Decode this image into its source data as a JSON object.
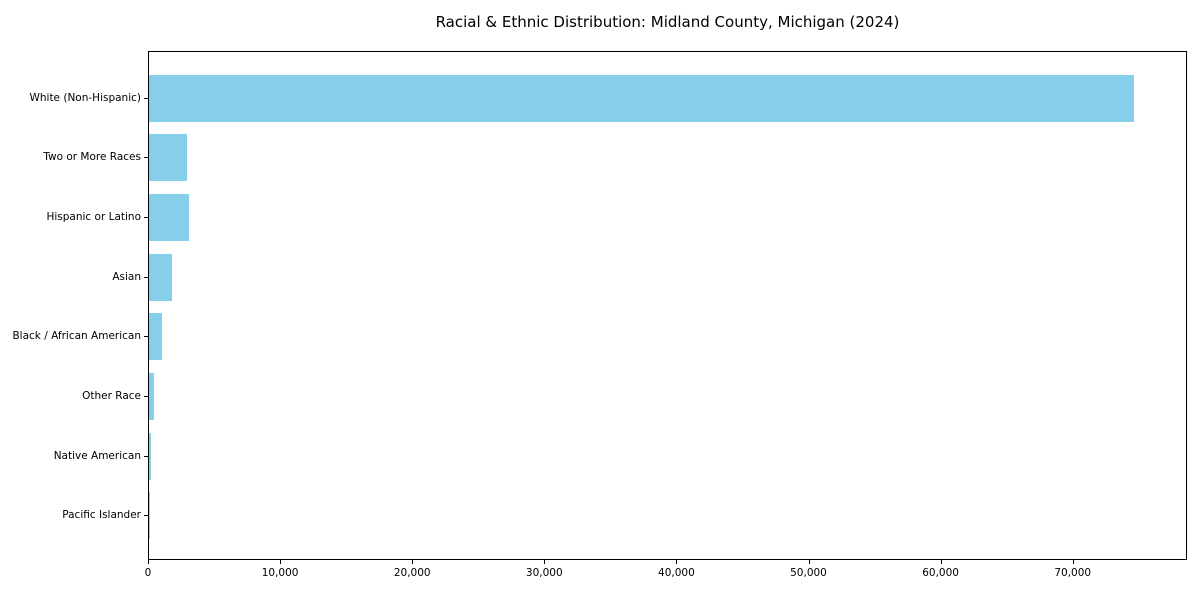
{
  "title": "Racial & Ethnic Distribution: Midland County, Michigan (2024)",
  "chart_data": {
    "type": "bar",
    "orientation": "horizontal",
    "title": "Racial & Ethnic Distribution: Midland County, Michigan (2024)",
    "xlabel": "",
    "ylabel": "",
    "categories": [
      "White (Non-Hispanic)",
      "Two or More Races",
      "Hispanic or Latino",
      "Asian",
      "Black / African American",
      "Other Race",
      "Native American",
      "Pacific Islander"
    ],
    "values": [
      74600,
      2900,
      3000,
      1750,
      1000,
      350,
      150,
      30
    ],
    "xlim": [
      0,
      78500
    ],
    "x_ticks": [
      0,
      10000,
      20000,
      30000,
      40000,
      50000,
      60000,
      70000
    ],
    "x_tick_labels": [
      "0",
      "10,000",
      "20,000",
      "30,000",
      "40,000",
      "50,000",
      "60,000",
      "70,000"
    ],
    "bar_color": "#87CEEB",
    "axis_color": "#000000",
    "grid": false,
    "legend": false
  }
}
